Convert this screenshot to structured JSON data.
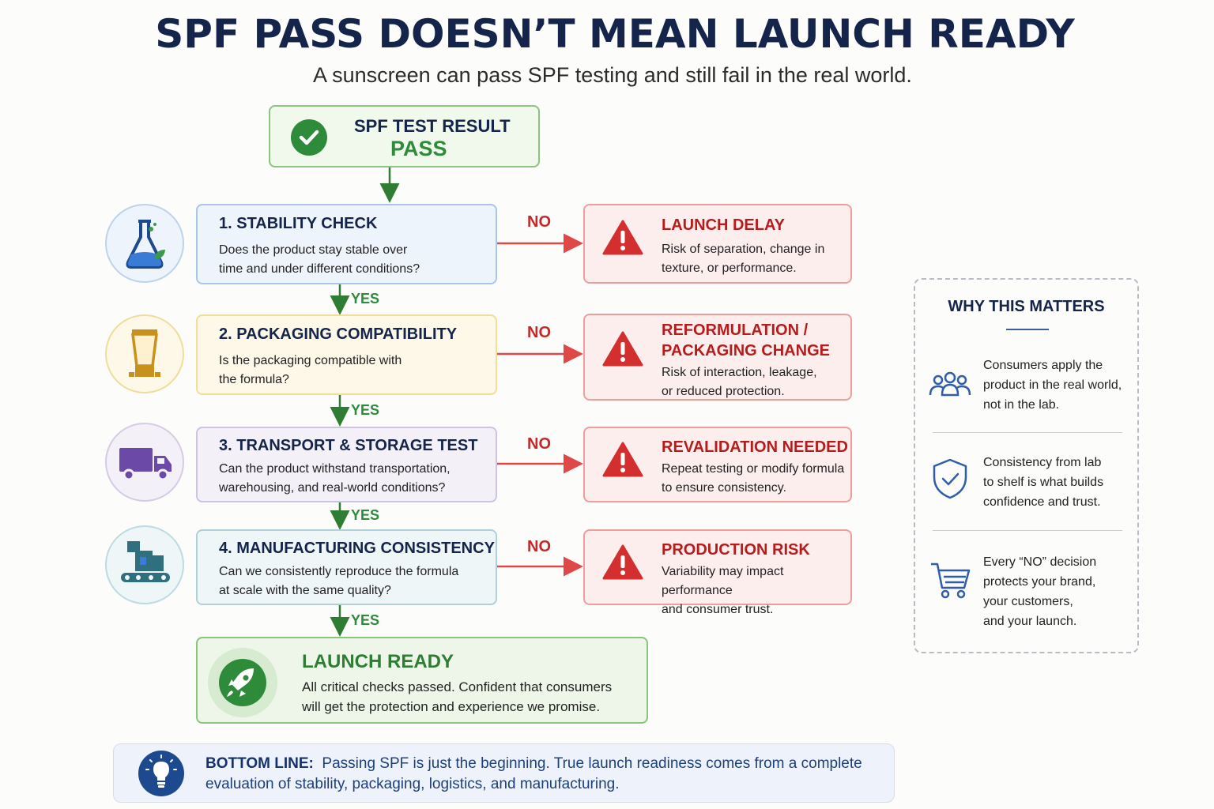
{
  "header": {
    "title": "SPF PASS DOESN’T MEAN LAUNCH READY",
    "subtitle": "A sunscreen can pass SPF testing and still fail in the real world."
  },
  "test_result": {
    "label": "SPF TEST RESULT",
    "value": "PASS"
  },
  "steps": [
    {
      "title": "1. STABILITY CHECK",
      "desc_line1": "Does the product stay stable over",
      "desc_line2": "time and under different conditions?",
      "icon": "flask-icon"
    },
    {
      "title": "2. PACKAGING COMPATIBILITY",
      "desc_line1": "Is the packaging compatible with",
      "desc_line2": "the formula?",
      "icon": "tube-icon"
    },
    {
      "title": "3. TRANSPORT & STORAGE TEST",
      "desc_line1": "Can the product withstand transportation,",
      "desc_line2": "warehousing, and real-world conditions?",
      "icon": "truck-icon"
    },
    {
      "title": "4. MANUFACTURING CONSISTENCY",
      "desc_line1": "Can we consistently reproduce the formula",
      "desc_line2": "at scale with the same quality?",
      "icon": "factory-conveyor-icon"
    }
  ],
  "outcomes": [
    {
      "title_line1": "LAUNCH DELAY",
      "title_line2": "",
      "desc_line1": "Risk of separation, change in",
      "desc_line2": "texture, or performance."
    },
    {
      "title_line1": "REFORMULATION /",
      "title_line2": "PACKAGING CHANGE",
      "desc_line1": "Risk of interaction, leakage,",
      "desc_line2": "or reduced protection."
    },
    {
      "title_line1": "REVALIDATION NEEDED",
      "title_line2": "",
      "desc_line1": "Repeat testing or modify formula",
      "desc_line2": "to ensure consistency."
    },
    {
      "title_line1": "PRODUCTION RISK",
      "title_line2": "",
      "desc_line1": "Variability may impact performance",
      "desc_line2": "and consumer trust."
    }
  ],
  "labels": {
    "no": "NO",
    "yes": "YES"
  },
  "launch_ready": {
    "title": "LAUNCH READY",
    "desc_line1": "All critical checks passed. Confident that consumers",
    "desc_line2": "will get the protection and experience we promise."
  },
  "why_panel": {
    "title": "WHY THIS MATTERS",
    "items": [
      {
        "icon": "people-icon",
        "lines": [
          "Consumers apply the",
          "product in the real world,",
          "not in the lab."
        ]
      },
      {
        "icon": "shield-check-icon",
        "lines": [
          "Consistency from lab",
          "to shelf is what builds",
          "confidence and trust."
        ]
      },
      {
        "icon": "cart-icon",
        "lines": [
          "Every “NO” decision",
          "protects your brand,",
          "your customers,",
          "and your launch."
        ]
      }
    ]
  },
  "bottom_line": {
    "label": "BOTTOM LINE:",
    "text_line1": "Passing SPF is just the beginning. True launch readiness comes from a complete",
    "text_line2": "evaluation of stability, packaging, logistics, and manufacturing."
  },
  "colors": {
    "navy": "#14244a",
    "green": "#2e8b3a",
    "red": "#c62828",
    "step1_bg": "#eef4fb",
    "step2_bg": "#fdf8e8",
    "step3_bg": "#f3f0f8",
    "step4_bg": "#eef6f8"
  }
}
